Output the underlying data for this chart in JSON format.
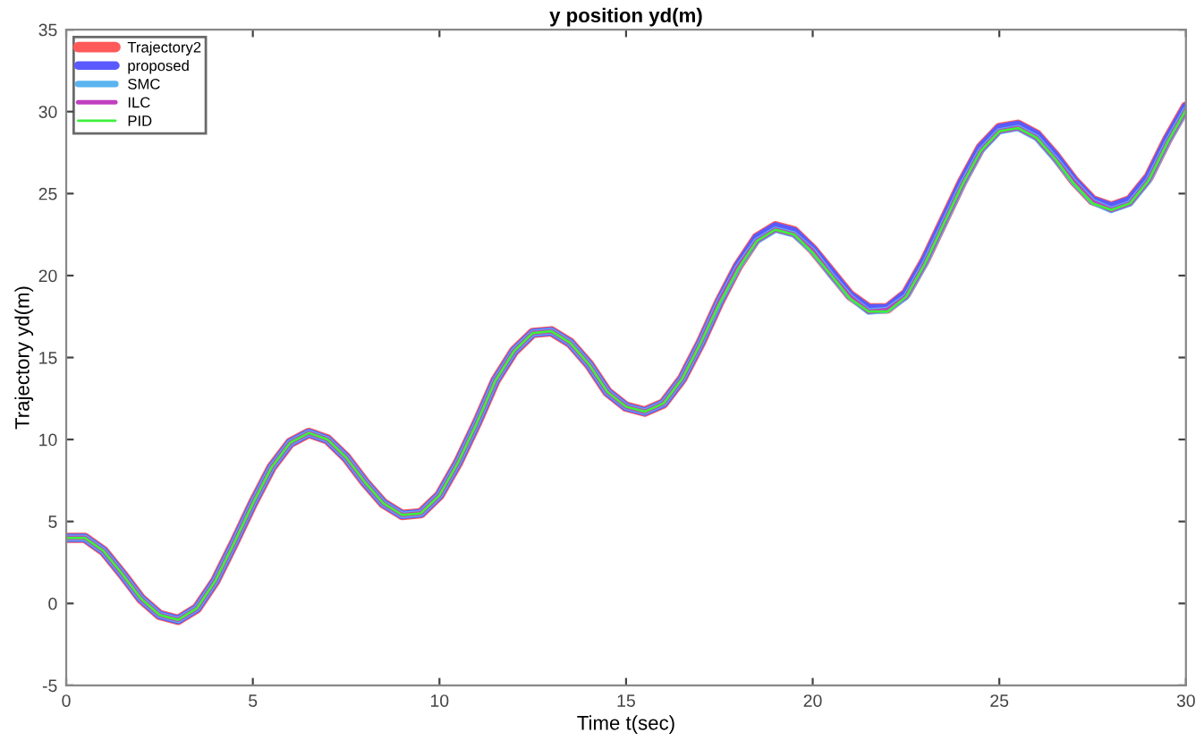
{
  "chart_data": {
    "type": "line",
    "title": "y position yd(m)",
    "xlabel": "Time t(sec)",
    "ylabel": "Trajectory yd(m)",
    "x": [
      0,
      0.5,
      1,
      1.5,
      2,
      2.5,
      3,
      3.5,
      4,
      4.5,
      5,
      5.5,
      6,
      6.5,
      7,
      7.5,
      8,
      8.5,
      9,
      9.5,
      10,
      10.5,
      11,
      11.5,
      12,
      12.5,
      13,
      13.5,
      14,
      14.5,
      15,
      15.5,
      16,
      16.5,
      17,
      17.5,
      18,
      18.5,
      19,
      19.5,
      20,
      20.5,
      21,
      21.5,
      22,
      22.5,
      23,
      23.5,
      24,
      24.5,
      25,
      25.5,
      26,
      26.5,
      27,
      27.5,
      28,
      28.5,
      29,
      29.5,
      30
    ],
    "series": [
      {
        "name": "Trajectory2",
        "color": "#ff5a5a",
        "values": [
          4.0,
          4.0,
          3.2,
          1.8,
          0.3,
          -0.7,
          -1.0,
          -0.3,
          1.4,
          3.7,
          6.1,
          8.3,
          9.8,
          10.4,
          10.0,
          8.9,
          7.4,
          6.1,
          5.4,
          5.5,
          6.6,
          8.6,
          11.0,
          13.6,
          15.4,
          16.5,
          16.6,
          15.9,
          14.6,
          12.9,
          12.0,
          11.7,
          12.2,
          13.7,
          15.9,
          18.4,
          20.6,
          22.3,
          23.0,
          22.7,
          21.6,
          20.2,
          18.8,
          18.0,
          18.0,
          18.9,
          20.9,
          23.3,
          25.7,
          27.8,
          29.0,
          29.2,
          28.6,
          27.3,
          25.8,
          24.6,
          24.2,
          24.6,
          26.0,
          28.3,
          30.3
        ]
      },
      {
        "name": "proposed",
        "color": "#5a5aff",
        "values": [
          4.0,
          4.0,
          3.2,
          1.8,
          0.3,
          -0.7,
          -1.0,
          -0.3,
          1.4,
          3.7,
          6.1,
          8.3,
          9.8,
          10.4,
          10.0,
          8.9,
          7.4,
          6.1,
          5.4,
          5.5,
          6.6,
          8.6,
          11.0,
          13.6,
          15.4,
          16.5,
          16.6,
          15.9,
          14.6,
          12.9,
          12.0,
          11.7,
          12.2,
          13.7,
          15.9,
          18.4,
          20.6,
          22.3,
          23.0,
          22.7,
          21.6,
          20.2,
          18.8,
          18.0,
          18.0,
          18.9,
          20.9,
          23.3,
          25.7,
          27.8,
          29.0,
          29.2,
          28.6,
          27.3,
          25.8,
          24.6,
          24.2,
          24.6,
          26.0,
          28.3,
          30.3
        ]
      },
      {
        "name": "SMC",
        "color": "#5ab4f0",
        "values": [
          4.0,
          4.0,
          3.2,
          1.8,
          0.3,
          -0.7,
          -1.0,
          -0.3,
          1.4,
          3.7,
          6.1,
          8.3,
          9.8,
          10.4,
          10.0,
          8.9,
          7.4,
          6.1,
          5.4,
          5.5,
          6.6,
          8.6,
          11.0,
          13.6,
          15.4,
          16.5,
          16.6,
          15.9,
          14.6,
          12.9,
          12.0,
          11.7,
          12.2,
          13.7,
          15.9,
          18.4,
          20.5,
          22.1,
          22.8,
          22.5,
          21.5,
          20.0,
          18.7,
          17.8,
          17.9,
          18.7,
          20.7,
          23.1,
          25.5,
          27.6,
          28.8,
          29.0,
          28.4,
          27.1,
          25.7,
          24.5,
          24.0,
          24.4,
          25.8,
          28.1,
          30.1
        ]
      },
      {
        "name": "ILC",
        "color": "#c040c0",
        "values": [
          4.0,
          4.0,
          3.2,
          1.8,
          0.3,
          -0.7,
          -1.0,
          -0.3,
          1.4,
          3.7,
          6.1,
          8.3,
          9.8,
          10.4,
          10.0,
          8.9,
          7.4,
          6.1,
          5.4,
          5.5,
          6.6,
          8.6,
          11.0,
          13.6,
          15.4,
          16.5,
          16.6,
          15.9,
          14.6,
          12.9,
          12.0,
          11.7,
          12.2,
          13.7,
          15.9,
          18.4,
          20.5,
          22.1,
          22.8,
          22.5,
          21.5,
          20.0,
          18.7,
          17.8,
          17.9,
          18.7,
          20.7,
          23.1,
          25.5,
          27.6,
          28.8,
          29.0,
          28.4,
          27.1,
          25.7,
          24.5,
          24.0,
          24.4,
          25.8,
          28.1,
          30.1
        ]
      },
      {
        "name": "PID",
        "color": "#3cf03c",
        "values": [
          4.0,
          4.0,
          3.2,
          1.8,
          0.3,
          -0.7,
          -1.0,
          -0.3,
          1.4,
          3.7,
          6.1,
          8.3,
          9.8,
          10.4,
          10.0,
          8.9,
          7.4,
          6.1,
          5.4,
          5.5,
          6.6,
          8.6,
          11.0,
          13.6,
          15.4,
          16.5,
          16.6,
          15.9,
          14.6,
          12.9,
          12.0,
          11.7,
          12.2,
          13.7,
          15.9,
          18.3,
          20.4,
          22.1,
          22.8,
          22.5,
          21.4,
          20.0,
          18.6,
          17.8,
          17.8,
          18.7,
          20.7,
          23.1,
          25.5,
          27.6,
          28.8,
          29.0,
          28.4,
          27.1,
          25.6,
          24.4,
          24.0,
          24.4,
          25.8,
          28.1,
          30.1
        ]
      }
    ],
    "xlim": [
      0,
      30
    ],
    "ylim": [
      -5,
      35
    ],
    "xticks": [
      0,
      5,
      10,
      15,
      20,
      25,
      30
    ],
    "yticks": [
      -5,
      0,
      5,
      10,
      15,
      20,
      25,
      30,
      35
    ],
    "grid": false,
    "legend": "top left",
    "marker": "none",
    "line_style": "solid"
  }
}
